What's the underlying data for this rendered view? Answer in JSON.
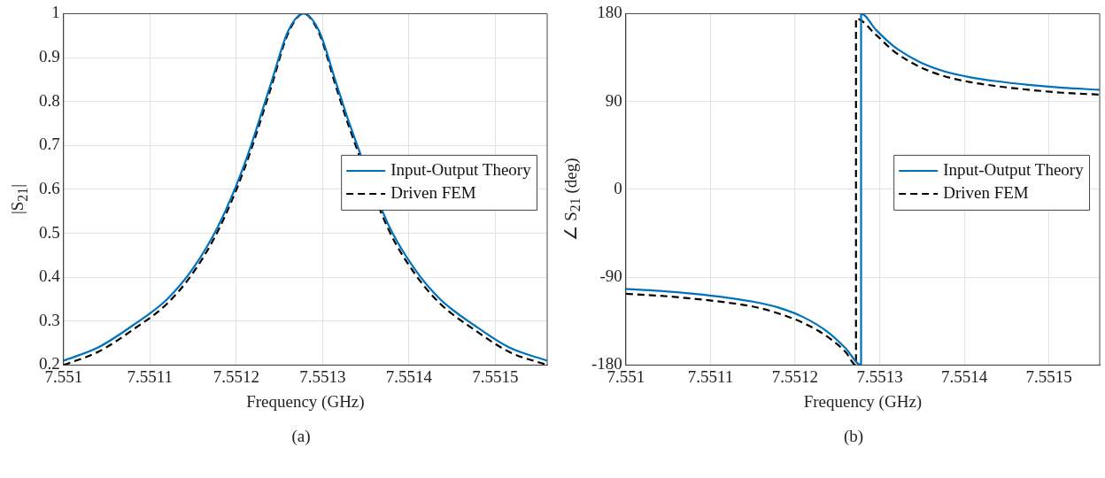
{
  "chart_data": [
    {
      "type": "line",
      "xlabel": "Frequency (GHz)",
      "ylabel": "|S$_{21}$|",
      "annotations": [
        "(a)"
      ],
      "x": [
        7.551,
        7.55104,
        7.55108,
        7.55112,
        7.55115,
        7.55118,
        7.55121,
        7.55124,
        7.55126,
        7.551278,
        7.551296,
        7.551316,
        7.551331,
        7.551376,
        7.551406,
        7.551436,
        7.551476,
        7.551516,
        7.55156
      ],
      "series": [
        {
          "name": "Input-Output Theory",
          "color": "#0072bd",
          "line_style": "solid",
          "values": [
            0.21,
            0.24,
            0.29,
            0.35,
            0.42,
            0.52,
            0.66,
            0.84,
            0.96,
            1,
            0.96,
            0.84,
            0.75,
            0.52,
            0.42,
            0.35,
            0.29,
            0.24,
            0.21
          ]
        },
        {
          "name": "Driven FEM",
          "color": "#000000",
          "line_style": "dashed",
          "values": [
            0.2,
            0.23,
            0.28,
            0.34,
            0.41,
            0.51,
            0.65,
            0.83,
            0.955,
            1,
            0.955,
            0.83,
            0.74,
            0.51,
            0.41,
            0.34,
            0.28,
            0.23,
            0.2
          ]
        }
      ],
      "xlim": [
        7.551,
        7.55156
      ],
      "xticks": [
        7.551,
        7.5511,
        7.5512,
        7.5513,
        7.5514,
        7.5515
      ],
      "ylim": [
        0.2,
        1
      ],
      "yticks": [
        0.2,
        0.3,
        0.4,
        0.5,
        0.6,
        0.7,
        0.8,
        0.9,
        1
      ],
      "grid": true,
      "legend": "right",
      "marker": "none"
    },
    {
      "type": "line",
      "xlabel": "Frequency (GHz)",
      "ylabel": "∠ S$_{21}$ (deg)",
      "annotations": [
        "(b)"
      ],
      "series": [
        {
          "name": "Input-Output Theory",
          "color": "#0072bd",
          "line_style": "solid",
          "x": [
            7.551,
            7.55104,
            7.55108,
            7.55112,
            7.55115,
            7.55118,
            7.55121,
            7.55124,
            7.55126,
            7.551278,
            7.551278,
            7.551296,
            7.551316,
            7.551346,
            7.551376,
            7.551406,
            7.551436,
            7.551476,
            7.551516,
            7.55156
          ],
          "values": [
            -102,
            -104,
            -107,
            -111,
            -115,
            -121,
            -131,
            -147,
            -163,
            -180,
            180,
            163,
            147,
            131,
            121,
            115,
            111,
            107,
            104,
            102
          ]
        },
        {
          "name": "Driven FEM",
          "color": "#000000",
          "line_style": "dashed",
          "x": [
            7.551,
            7.55104,
            7.55108,
            7.55112,
            7.55115,
            7.55118,
            7.55121,
            7.55124,
            7.55126,
            7.551272,
            7.551272,
            7.551296,
            7.551316,
            7.551346,
            7.551376,
            7.551406,
            7.551436,
            7.551476,
            7.551516,
            7.55156
          ],
          "values": [
            -107,
            -109,
            -112,
            -116,
            -120,
            -127,
            -137,
            -152,
            -167,
            -180,
            175,
            158,
            142,
            126,
            116,
            110,
            106,
            102,
            99,
            97
          ]
        }
      ],
      "xlim": [
        7.551,
        7.55156
      ],
      "xticks": [
        7.551,
        7.5511,
        7.5512,
        7.5513,
        7.5514,
        7.5515
      ],
      "ylim": [
        -180,
        180
      ],
      "yticks": [
        -180,
        -90,
        0,
        90,
        180
      ],
      "grid": true,
      "legend": "right",
      "marker": "none"
    }
  ]
}
